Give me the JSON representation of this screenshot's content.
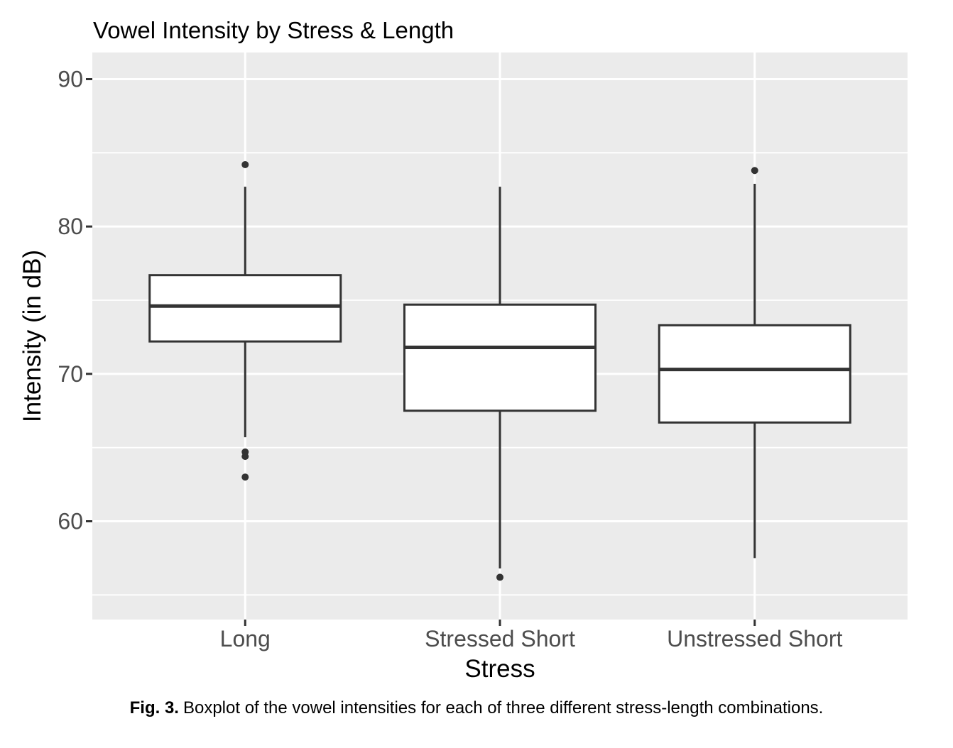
{
  "figure": {
    "caption_label": "Fig. 3.",
    "caption_text": "Boxplot of the vowel intensities for each of three different stress-length combinations."
  },
  "chart_data": {
    "type": "boxplot",
    "title": "Vowel Intensity by Stress & Length",
    "xlabel": "Stress",
    "ylabel": "Intensity (in dB)",
    "categories": [
      "Long",
      "Stressed Short",
      "Unstressed Short"
    ],
    "y_axis": {
      "ticks": [
        60,
        70,
        80,
        90
      ],
      "minor_ticks": [
        55,
        65,
        75,
        85
      ],
      "range_db": [
        53.3,
        91.8
      ]
    },
    "grid": true,
    "legend_position": "none",
    "series": [
      {
        "name": "Long",
        "whisker_low": 65.7,
        "q1": 72.2,
        "median": 74.6,
        "q3": 76.7,
        "whisker_high": 82.7,
        "outliers": [
          84.2,
          64.7,
          64.4,
          63.0
        ]
      },
      {
        "name": "Stressed Short",
        "whisker_low": 56.8,
        "q1": 67.5,
        "median": 71.8,
        "q3": 74.7,
        "whisker_high": 82.7,
        "outliers": [
          56.2
        ]
      },
      {
        "name": "Unstressed Short",
        "whisker_low": 57.5,
        "q1": 66.7,
        "median": 70.3,
        "q3": 73.3,
        "whisker_high": 82.9,
        "outliers": [
          83.8
        ]
      }
    ],
    "colors": {
      "panel_bg": "#EBEBEB",
      "grid": "#FFFFFF",
      "box_stroke": "#333333",
      "box_fill": "#FFFFFF",
      "axis_text": "#4D4D4D",
      "title_text": "#000000",
      "tick_mark": "#333333"
    }
  }
}
